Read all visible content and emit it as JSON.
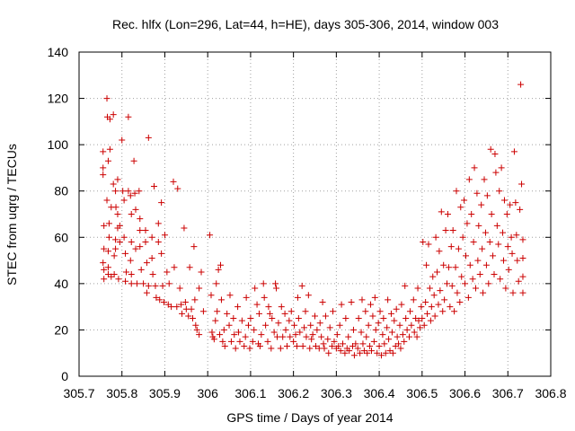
{
  "chart_data": {
    "type": "scatter",
    "title": "Rec. hlfx (Lon=296, Lat=44, h=HE), days 305-306, 2014, window 003",
    "xlabel": "GPS time / Days of year 2014",
    "ylabel": "STEC from uqrg / TECUs",
    "xlim": [
      305.7,
      306.8
    ],
    "ylim": [
      0,
      140
    ],
    "xticks": [
      "305.7",
      "305.8",
      "305.9",
      "306",
      "306.1",
      "306.2",
      "306.3",
      "306.4",
      "306.5",
      "306.6",
      "306.7",
      "306.8"
    ],
    "yticks": [
      "0",
      "20",
      "40",
      "60",
      "80",
      "100",
      "120",
      "140"
    ],
    "grid": true,
    "marker": "+",
    "color": "#cc0000",
    "points": [
      [
        305.756,
        97
      ],
      [
        305.756,
        90
      ],
      [
        305.756,
        87
      ],
      [
        305.758,
        65
      ],
      [
        305.758,
        55
      ],
      [
        305.756,
        49
      ],
      [
        305.758,
        46
      ],
      [
        305.758,
        42
      ],
      [
        305.765,
        120
      ],
      [
        305.766,
        112
      ],
      [
        305.772,
        111
      ],
      [
        305.78,
        113
      ],
      [
        305.772,
        98
      ],
      [
        305.768,
        93
      ],
      [
        305.765,
        76
      ],
      [
        305.775,
        73
      ],
      [
        305.77,
        66
      ],
      [
        305.77,
        60
      ],
      [
        305.768,
        54
      ],
      [
        305.768,
        47
      ],
      [
        305.768,
        44
      ],
      [
        305.775,
        43
      ],
      [
        305.78,
        83
      ],
      [
        305.785,
        80
      ],
      [
        305.79,
        85
      ],
      [
        305.786,
        73
      ],
      [
        305.79,
        70
      ],
      [
        305.79,
        64
      ],
      [
        305.785,
        59
      ],
      [
        305.785,
        55
      ],
      [
        305.782,
        52
      ],
      [
        305.782,
        44
      ],
      [
        305.792,
        42
      ],
      [
        305.795,
        65
      ],
      [
        305.795,
        58
      ],
      [
        305.8,
        102
      ],
      [
        305.802,
        80
      ],
      [
        305.805,
        76
      ],
      [
        305.805,
        60
      ],
      [
        305.808,
        53
      ],
      [
        305.81,
        45
      ],
      [
        305.808,
        41
      ],
      [
        305.815,
        112
      ],
      [
        305.815,
        80
      ],
      [
        305.82,
        78
      ],
      [
        305.822,
        70
      ],
      [
        305.822,
        58
      ],
      [
        305.82,
        50
      ],
      [
        305.822,
        44
      ],
      [
        305.822,
        40
      ],
      [
        305.828,
        93
      ],
      [
        305.83,
        79
      ],
      [
        305.832,
        72
      ],
      [
        305.832,
        55
      ],
      [
        305.835,
        40
      ],
      [
        305.84,
        80
      ],
      [
        305.842,
        68
      ],
      [
        305.842,
        63
      ],
      [
        305.842,
        56
      ],
      [
        305.845,
        46
      ],
      [
        305.85,
        40
      ],
      [
        305.855,
        63
      ],
      [
        305.855,
        58
      ],
      [
        305.858,
        49
      ],
      [
        305.858,
        36
      ],
      [
        305.862,
        103
      ],
      [
        305.862,
        39
      ],
      [
        305.87,
        60
      ],
      [
        305.87,
        51
      ],
      [
        305.872,
        44
      ],
      [
        305.875,
        82
      ],
      [
        305.878,
        39
      ],
      [
        305.88,
        34
      ],
      [
        305.885,
        66
      ],
      [
        305.885,
        58
      ],
      [
        305.888,
        33
      ],
      [
        305.892,
        75
      ],
      [
        305.892,
        53
      ],
      [
        305.895,
        39
      ],
      [
        305.898,
        32
      ],
      [
        305.9,
        61
      ],
      [
        305.905,
        45
      ],
      [
        305.908,
        31
      ],
      [
        305.91,
        40
      ],
      [
        305.915,
        30
      ],
      [
        305.92,
        84
      ],
      [
        305.922,
        47
      ],
      [
        305.928,
        30
      ],
      [
        305.93,
        81
      ],
      [
        305.935,
        38
      ],
      [
        305.938,
        31
      ],
      [
        305.94,
        27
      ],
      [
        305.945,
        64
      ],
      [
        305.948,
        32
      ],
      [
        305.95,
        29
      ],
      [
        305.955,
        26
      ],
      [
        305.958,
        47
      ],
      [
        305.962,
        29
      ],
      [
        305.965,
        25
      ],
      [
        305.968,
        56
      ],
      [
        305.97,
        33
      ],
      [
        305.972,
        22
      ],
      [
        305.975,
        20
      ],
      [
        305.98,
        38
      ],
      [
        305.98,
        18
      ],
      [
        305.985,
        45
      ],
      [
        305.99,
        28
      ],
      [
        306.005,
        61
      ],
      [
        306.008,
        35
      ],
      [
        306.01,
        19
      ],
      [
        306.012,
        17
      ],
      [
        306.015,
        16
      ],
      [
        306.018,
        24
      ],
      [
        306.02,
        40
      ],
      [
        306.022,
        28
      ],
      [
        306.025,
        46
      ],
      [
        306.028,
        18
      ],
      [
        306.03,
        48
      ],
      [
        306.032,
        33
      ],
      [
        306.035,
        15
      ],
      [
        306.038,
        20
      ],
      [
        306.04,
        13
      ],
      [
        306.045,
        27
      ],
      [
        306.05,
        22
      ],
      [
        306.052,
        35
      ],
      [
        306.055,
        15
      ],
      [
        306.06,
        25
      ],
      [
        306.062,
        18
      ],
      [
        306.065,
        12
      ],
      [
        306.07,
        30
      ],
      [
        306.072,
        19
      ],
      [
        306.075,
        15
      ],
      [
        306.08,
        24
      ],
      [
        306.085,
        13
      ],
      [
        306.088,
        17
      ],
      [
        306.09,
        34
      ],
      [
        306.095,
        22
      ],
      [
        306.098,
        12
      ],
      [
        306.1,
        25
      ],
      [
        306.105,
        15
      ],
      [
        306.108,
        20
      ],
      [
        306.11,
        38
      ],
      [
        306.115,
        31
      ],
      [
        306.118,
        14
      ],
      [
        306.12,
        27
      ],
      [
        306.122,
        13
      ],
      [
        306.125,
        18
      ],
      [
        306.13,
        40
      ],
      [
        306.132,
        34
      ],
      [
        306.135,
        22
      ],
      [
        306.14,
        15
      ],
      [
        306.142,
        30
      ],
      [
        306.145,
        27
      ],
      [
        306.148,
        12
      ],
      [
        306.15,
        25
      ],
      [
        306.155,
        19
      ],
      [
        306.158,
        40
      ],
      [
        306.16,
        38
      ],
      [
        306.162,
        17
      ],
      [
        306.165,
        23
      ],
      [
        306.17,
        12
      ],
      [
        306.172,
        30
      ],
      [
        306.175,
        17
      ],
      [
        306.18,
        27
      ],
      [
        306.182,
        20
      ],
      [
        306.185,
        13
      ],
      [
        306.19,
        24
      ],
      [
        306.192,
        17
      ],
      [
        306.195,
        28
      ],
      [
        306.2,
        15
      ],
      [
        306.202,
        22
      ],
      [
        306.205,
        18
      ],
      [
        306.208,
        13
      ],
      [
        306.21,
        34
      ],
      [
        306.212,
        25
      ],
      [
        306.215,
        19
      ],
      [
        306.22,
        39
      ],
      [
        306.222,
        13
      ],
      [
        306.225,
        21
      ],
      [
        306.228,
        28
      ],
      [
        306.23,
        17
      ],
      [
        306.235,
        35
      ],
      [
        306.238,
        12
      ],
      [
        306.24,
        22
      ],
      [
        306.242,
        16
      ],
      [
        306.245,
        18
      ],
      [
        306.25,
        26
      ],
      [
        306.252,
        13
      ],
      [
        306.255,
        20
      ],
      [
        306.26,
        12
      ],
      [
        306.262,
        23
      ],
      [
        306.265,
        17
      ],
      [
        306.268,
        32
      ],
      [
        306.27,
        14
      ],
      [
        306.272,
        12
      ],
      [
        306.275,
        26
      ],
      [
        306.28,
        16
      ],
      [
        306.282,
        10
      ],
      [
        306.285,
        21
      ],
      [
        306.29,
        13
      ],
      [
        306.292,
        28
      ],
      [
        306.295,
        15
      ],
      [
        306.3,
        12
      ],
      [
        306.302,
        18
      ],
      [
        306.305,
        13
      ],
      [
        306.308,
        22
      ],
      [
        306.31,
        11
      ],
      [
        306.312,
        31
      ],
      [
        306.315,
        14
      ],
      [
        306.32,
        10
      ],
      [
        306.322,
        25
      ],
      [
        306.325,
        12
      ],
      [
        306.328,
        17
      ],
      [
        306.33,
        11
      ],
      [
        306.335,
        32
      ],
      [
        306.338,
        13
      ],
      [
        306.34,
        20
      ],
      [
        306.342,
        9
      ],
      [
        306.345,
        14
      ],
      [
        306.35,
        12
      ],
      [
        306.352,
        25
      ],
      [
        306.355,
        10
      ],
      [
        306.358,
        19
      ],
      [
        306.36,
        33
      ],
      [
        306.362,
        14
      ],
      [
        306.365,
        11
      ],
      [
        306.368,
        28
      ],
      [
        306.37,
        17
      ],
      [
        306.372,
        10
      ],
      [
        306.375,
        22
      ],
      [
        306.378,
        13
      ],
      [
        306.38,
        31
      ],
      [
        306.382,
        11
      ],
      [
        306.385,
        26
      ],
      [
        306.388,
        15
      ],
      [
        306.39,
        34
      ],
      [
        306.392,
        20
      ],
      [
        306.395,
        10
      ],
      [
        306.398,
        23
      ],
      [
        306.4,
        13
      ],
      [
        306.402,
        28
      ],
      [
        306.405,
        9
      ],
      [
        306.408,
        18
      ],
      [
        306.41,
        25
      ],
      [
        306.412,
        14
      ],
      [
        306.415,
        10
      ],
      [
        306.418,
        21
      ],
      [
        306.42,
        33
      ],
      [
        306.422,
        16
      ],
      [
        306.425,
        11
      ],
      [
        306.428,
        27
      ],
      [
        306.43,
        19
      ],
      [
        306.432,
        10
      ],
      [
        306.435,
        24
      ],
      [
        306.438,
        13
      ],
      [
        306.44,
        29
      ],
      [
        306.442,
        17
      ],
      [
        306.445,
        14
      ],
      [
        306.448,
        22
      ],
      [
        306.45,
        12
      ],
      [
        306.452,
        31
      ],
      [
        306.455,
        18
      ],
      [
        306.458,
        15
      ],
      [
        306.46,
        39
      ],
      [
        306.462,
        25
      ],
      [
        306.465,
        20
      ],
      [
        306.47,
        17
      ],
      [
        306.472,
        28
      ],
      [
        306.475,
        22
      ],
      [
        306.48,
        33
      ],
      [
        306.482,
        19
      ],
      [
        306.485,
        25
      ],
      [
        306.488,
        17
      ],
      [
        306.49,
        38
      ],
      [
        306.492,
        24
      ],
      [
        306.495,
        21
      ],
      [
        306.498,
        30
      ],
      [
        306.5,
        25
      ],
      [
        306.502,
        58
      ],
      [
        306.505,
        22
      ],
      [
        306.508,
        32
      ],
      [
        306.51,
        48
      ],
      [
        306.512,
        27
      ],
      [
        306.515,
        57
      ],
      [
        306.518,
        38
      ],
      [
        306.52,
        24
      ],
      [
        306.522,
        30
      ],
      [
        306.525,
        43
      ],
      [
        306.528,
        35
      ],
      [
        306.53,
        26
      ],
      [
        306.532,
        60
      ],
      [
        306.535,
        45
      ],
      [
        306.538,
        31
      ],
      [
        306.54,
        54
      ],
      [
        306.542,
        37
      ],
      [
        306.545,
        71
      ],
      [
        306.548,
        28
      ],
      [
        306.55,
        48
      ],
      [
        306.552,
        33
      ],
      [
        306.555,
        63
      ],
      [
        306.558,
        40
      ],
      [
        306.56,
        70
      ],
      [
        306.562,
        47
      ],
      [
        306.565,
        30
      ],
      [
        306.568,
        56
      ],
      [
        306.57,
        39
      ],
      [
        306.572,
        63
      ],
      [
        306.575,
        28
      ],
      [
        306.578,
        47
      ],
      [
        306.58,
        80
      ],
      [
        306.582,
        36
      ],
      [
        306.585,
        55
      ],
      [
        306.588,
        32
      ],
      [
        306.59,
        73
      ],
      [
        306.592,
        43
      ],
      [
        306.595,
        60
      ],
      [
        306.598,
        76
      ],
      [
        306.6,
        40
      ],
      [
        306.602,
        52
      ],
      [
        306.605,
        66
      ],
      [
        306.608,
        34
      ],
      [
        306.61,
        85
      ],
      [
        306.612,
        48
      ],
      [
        306.615,
        70
      ],
      [
        306.618,
        42
      ],
      [
        306.62,
        58
      ],
      [
        306.622,
        90
      ],
      [
        306.625,
        38
      ],
      [
        306.628,
        79
      ],
      [
        306.63,
        50
      ],
      [
        306.632,
        65
      ],
      [
        306.635,
        44
      ],
      [
        306.638,
        74
      ],
      [
        306.64,
        55
      ],
      [
        306.642,
        36
      ],
      [
        306.645,
        85
      ],
      [
        306.648,
        62
      ],
      [
        306.65,
        48
      ],
      [
        306.652,
        78
      ],
      [
        306.655,
        40
      ],
      [
        306.658,
        58
      ],
      [
        306.66,
        98
      ],
      [
        306.662,
        70
      ],
      [
        306.665,
        52
      ],
      [
        306.668,
        44
      ],
      [
        306.67,
        96
      ],
      [
        306.672,
        88
      ],
      [
        306.675,
        65
      ],
      [
        306.678,
        57
      ],
      [
        306.68,
        80
      ],
      [
        306.682,
        42
      ],
      [
        306.685,
        90
      ],
      [
        306.688,
        62
      ],
      [
        306.69,
        50
      ],
      [
        306.692,
        76
      ],
      [
        306.695,
        38
      ],
      [
        306.698,
        70
      ],
      [
        306.7,
        56
      ],
      [
        306.702,
        46
      ],
      [
        306.705,
        74
      ],
      [
        306.708,
        60
      ],
      [
        306.71,
        53
      ],
      [
        306.712,
        36
      ],
      [
        306.715,
        97
      ],
      [
        306.718,
        75
      ],
      [
        306.72,
        61
      ],
      [
        306.722,
        50
      ],
      [
        306.725,
        41
      ],
      [
        306.728,
        72
      ],
      [
        306.73,
        126
      ],
      [
        306.732,
        83
      ],
      [
        306.735,
        59
      ],
      [
        306.735,
        51
      ],
      [
        306.735,
        43
      ],
      [
        306.735,
        36
      ]
    ]
  }
}
